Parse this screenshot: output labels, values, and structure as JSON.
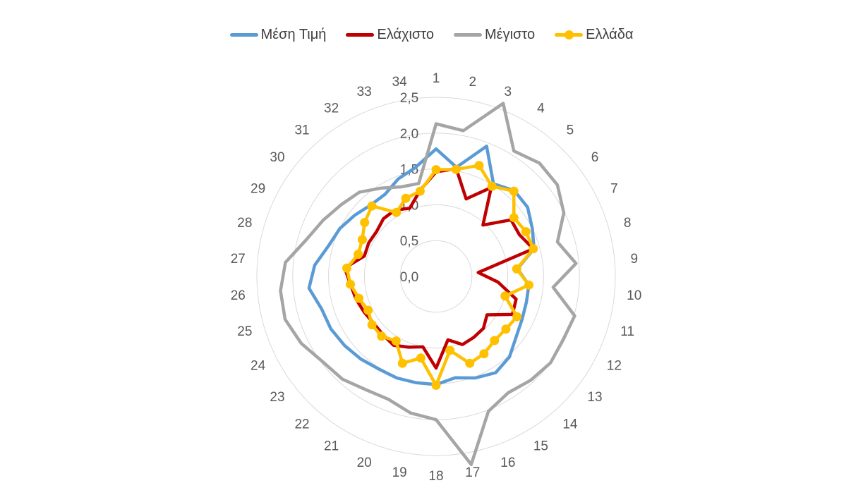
{
  "chart_data": {
    "type": "radar",
    "categories": [
      "1",
      "2",
      "3",
      "4",
      "5",
      "6",
      "7",
      "8",
      "9",
      "10",
      "11",
      "12",
      "13",
      "14",
      "15",
      "16",
      "17",
      "18",
      "19",
      "20",
      "21",
      "22",
      "23",
      "24",
      "25",
      "26",
      "27",
      "28",
      "29",
      "30",
      "31",
      "32",
      "33",
      "34"
    ],
    "r_ticks": [
      "0,0",
      "0,5",
      "1,0",
      "1,5",
      "2,0",
      "2,5"
    ],
    "r_tick_values": [
      0,
      0.5,
      1.0,
      1.5,
      2.0,
      2.5
    ],
    "rlim": [
      0,
      2.5
    ],
    "grid": true,
    "legend_position": "top",
    "series": [
      {
        "name": "Μέση Τιμή",
        "color": "#5B9BD5",
        "marker": false,
        "values": [
          1.78,
          1.55,
          1.95,
          1.52,
          1.62,
          1.6,
          1.5,
          1.42,
          1.14,
          1.3,
          1.31,
          1.34,
          1.4,
          1.52,
          1.58,
          1.52,
          1.44,
          1.51,
          1.51,
          1.52,
          1.52,
          1.56,
          1.6,
          1.64,
          1.66,
          1.78,
          1.7,
          1.56,
          1.5,
          1.42,
          1.35,
          1.35,
          1.46,
          1.55
        ]
      },
      {
        "name": "Ελάχιστο",
        "color": "#C00000",
        "marker": false,
        "values": [
          1.46,
          1.53,
          1.16,
          1.46,
          0.97,
          1.31,
          1.3,
          1.41,
          0.59,
          0.87,
          1.16,
          1.19,
          0.89,
          0.98,
          1.0,
          1.02,
          0.9,
          1.28,
          1.0,
          1.06,
          1.13,
          1.1,
          1.09,
          1.12,
          1.16,
          1.2,
          1.28,
          1.04,
          1.05,
          1.04,
          1.09,
          1.09,
          1.02,
          1.22
        ]
      },
      {
        "name": "Μέγιστο",
        "color": "#A5A5A5",
        "marker": false,
        "values": [
          2.13,
          2.07,
          2.59,
          2.06,
          2.14,
          2.12,
          1.99,
          1.76,
          1.96,
          1.64,
          2.01,
          1.98,
          2.0,
          1.96,
          1.91,
          2.02,
          2.67,
          2.0,
          1.94,
          1.84,
          1.86,
          1.94,
          1.98,
          2.1,
          2.19,
          2.18,
          2.11,
          1.88,
          1.76,
          1.66,
          1.59,
          1.45,
          1.34,
          1.32
        ]
      },
      {
        "name": "Ελλάδα",
        "color": "#FFC000",
        "marker": true,
        "values": [
          1.49,
          1.52,
          1.66,
          1.48,
          1.61,
          1.36,
          1.4,
          1.41,
          1.13,
          1.3,
          1.0,
          1.26,
          1.22,
          1.21,
          1.27,
          1.3,
          1.05,
          1.52,
          1.16,
          1.3,
          1.06,
          1.13,
          1.12,
          1.06,
          1.12,
          1.2,
          1.25,
          1.13,
          1.15,
          1.25,
          1.33,
          1.05,
          1.17,
          1.21
        ]
      }
    ]
  }
}
